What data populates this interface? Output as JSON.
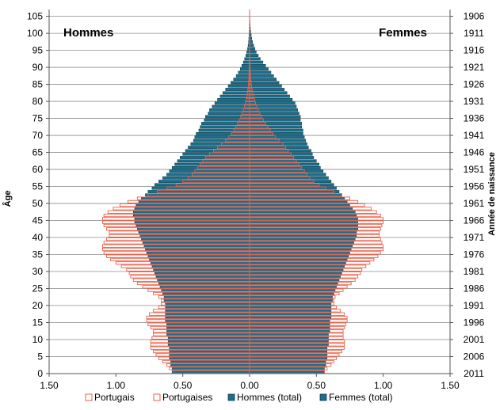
{
  "chart_data": {
    "type": "bar",
    "orientation": "horizontal",
    "layout": "population-pyramid",
    "left_label": "Hommes",
    "right_label": "Femmes",
    "ylabel": "Âge",
    "y2label": "Année de naissance",
    "xlim": [
      -1.5,
      1.5
    ],
    "ylim": [
      0,
      107
    ],
    "x_tick_labels": [
      "1.50",
      "1.00",
      "0.50",
      "0.00",
      "0.50",
      "1.00",
      "1.50"
    ],
    "age_ticks": [
      "0",
      "5",
      "10",
      "15",
      "20",
      "25",
      "30",
      "35",
      "40",
      "45",
      "50",
      "55",
      "60",
      "65",
      "70",
      "75",
      "80",
      "85",
      "90",
      "95",
      "100",
      "105"
    ],
    "year_ticks": [
      "2011",
      "2006",
      "2001",
      "1996",
      "1991",
      "1986",
      "1981",
      "1976",
      "1971",
      "1966",
      "1961",
      "1956",
      "1951",
      "1946",
      "1941",
      "1936",
      "1931",
      "1926",
      "1921",
      "1916",
      "1911",
      "1906"
    ],
    "grid": true,
    "legend_position": "bottom",
    "series": [
      {
        "name": "Portugais",
        "side": "left",
        "style": "outline",
        "color": "#e8614a",
        "values": [
          0.57,
          0.6,
          0.62,
          0.65,
          0.68,
          0.7,
          0.72,
          0.74,
          0.74,
          0.74,
          0.73,
          0.72,
          0.72,
          0.74,
          0.76,
          0.77,
          0.77,
          0.75,
          0.72,
          0.68,
          0.66,
          0.66,
          0.68,
          0.72,
          0.76,
          0.8,
          0.84,
          0.87,
          0.89,
          0.9,
          0.92,
          0.96,
          1.0,
          1.04,
          1.07,
          1.09,
          1.1,
          1.1,
          1.09,
          1.07,
          1.05,
          1.05,
          1.07,
          1.09,
          1.1,
          1.1,
          1.09,
          1.06,
          1.02,
          0.97,
          0.91,
          0.84,
          0.76,
          0.69,
          0.62,
          0.55,
          0.5,
          0.46,
          0.43,
          0.41,
          0.39,
          0.37,
          0.35,
          0.33,
          0.3,
          0.27,
          0.24,
          0.21,
          0.18,
          0.155,
          0.135,
          0.118,
          0.103,
          0.09,
          0.078,
          0.066,
          0.056,
          0.047,
          0.039,
          0.032,
          0.026,
          0.021,
          0.017,
          0.013,
          0.01,
          0.008,
          0.006,
          0.005,
          0.004,
          0.003,
          0.002,
          0.002,
          0.001,
          0.001,
          0.001,
          0,
          0,
          0,
          0,
          0,
          0,
          0,
          0,
          0,
          0,
          0
        ]
      },
      {
        "name": "Portugaises",
        "side": "right",
        "style": "outline",
        "color": "#e8614a",
        "values": [
          0.56,
          0.58,
          0.61,
          0.63,
          0.65,
          0.67,
          0.69,
          0.71,
          0.71,
          0.71,
          0.7,
          0.7,
          0.7,
          0.71,
          0.72,
          0.73,
          0.73,
          0.71,
          0.68,
          0.65,
          0.63,
          0.63,
          0.64,
          0.67,
          0.7,
          0.73,
          0.76,
          0.79,
          0.81,
          0.83,
          0.84,
          0.87,
          0.9,
          0.93,
          0.96,
          0.98,
          1.0,
          1.0,
          0.99,
          0.98,
          0.97,
          0.97,
          0.98,
          0.99,
          1.0,
          1.0,
          0.98,
          0.95,
          0.91,
          0.86,
          0.81,
          0.75,
          0.69,
          0.63,
          0.57,
          0.52,
          0.48,
          0.45,
          0.43,
          0.41,
          0.39,
          0.37,
          0.35,
          0.33,
          0.31,
          0.29,
          0.27,
          0.25,
          0.22,
          0.195,
          0.175,
          0.155,
          0.137,
          0.12,
          0.104,
          0.09,
          0.077,
          0.065,
          0.054,
          0.045,
          0.037,
          0.03,
          0.024,
          0.019,
          0.015,
          0.012,
          0.009,
          0.007,
          0.005,
          0.004,
          0.003,
          0.002,
          0.002,
          0.001,
          0.001,
          0,
          0,
          0,
          0,
          0,
          0,
          0,
          0,
          0,
          0,
          0
        ]
      },
      {
        "name": "Hommes (total)",
        "side": "left",
        "style": "filled",
        "color": "#1c6e8c",
        "values": [
          0.58,
          0.58,
          0.59,
          0.59,
          0.6,
          0.6,
          0.6,
          0.6,
          0.61,
          0.61,
          0.61,
          0.62,
          0.62,
          0.62,
          0.62,
          0.63,
          0.63,
          0.63,
          0.63,
          0.63,
          0.63,
          0.64,
          0.64,
          0.65,
          0.66,
          0.67,
          0.68,
          0.69,
          0.7,
          0.71,
          0.72,
          0.73,
          0.74,
          0.75,
          0.76,
          0.77,
          0.78,
          0.79,
          0.8,
          0.81,
          0.82,
          0.83,
          0.84,
          0.85,
          0.86,
          0.86,
          0.87,
          0.87,
          0.86,
          0.85,
          0.83,
          0.81,
          0.78,
          0.76,
          0.73,
          0.71,
          0.68,
          0.65,
          0.62,
          0.6,
          0.58,
          0.56,
          0.54,
          0.52,
          0.5,
          0.48,
          0.46,
          0.44,
          0.42,
          0.41,
          0.4,
          0.38,
          0.37,
          0.36,
          0.34,
          0.33,
          0.31,
          0.3,
          0.28,
          0.26,
          0.24,
          0.22,
          0.2,
          0.18,
          0.16,
          0.14,
          0.12,
          0.1,
          0.085,
          0.07,
          0.058,
          0.047,
          0.037,
          0.028,
          0.021,
          0.015,
          0.011,
          0.008,
          0.006,
          0.004,
          0.003,
          0.002,
          0.001,
          0.001,
          0.001,
          0.001
        ]
      },
      {
        "name": "Femmes (total)",
        "side": "right",
        "style": "filled",
        "color": "#1c6e8c",
        "values": [
          0.56,
          0.56,
          0.57,
          0.57,
          0.58,
          0.58,
          0.58,
          0.58,
          0.59,
          0.59,
          0.59,
          0.59,
          0.6,
          0.6,
          0.6,
          0.6,
          0.61,
          0.61,
          0.61,
          0.61,
          0.61,
          0.62,
          0.62,
          0.63,
          0.64,
          0.65,
          0.66,
          0.67,
          0.68,
          0.69,
          0.7,
          0.71,
          0.72,
          0.73,
          0.74,
          0.75,
          0.76,
          0.77,
          0.78,
          0.79,
          0.8,
          0.8,
          0.81,
          0.81,
          0.81,
          0.81,
          0.8,
          0.79,
          0.77,
          0.75,
          0.73,
          0.71,
          0.69,
          0.67,
          0.65,
          0.63,
          0.61,
          0.59,
          0.57,
          0.55,
          0.53,
          0.52,
          0.5,
          0.48,
          0.47,
          0.46,
          0.44,
          0.43,
          0.42,
          0.41,
          0.4,
          0.4,
          0.39,
          0.39,
          0.38,
          0.38,
          0.37,
          0.36,
          0.35,
          0.34,
          0.32,
          0.3,
          0.28,
          0.26,
          0.24,
          0.22,
          0.2,
          0.18,
          0.16,
          0.14,
          0.12,
          0.1,
          0.08,
          0.065,
          0.05,
          0.04,
          0.03,
          0.022,
          0.016,
          0.012,
          0.008,
          0.006,
          0.004,
          0.003,
          0.002,
          0.001
        ]
      }
    ]
  }
}
